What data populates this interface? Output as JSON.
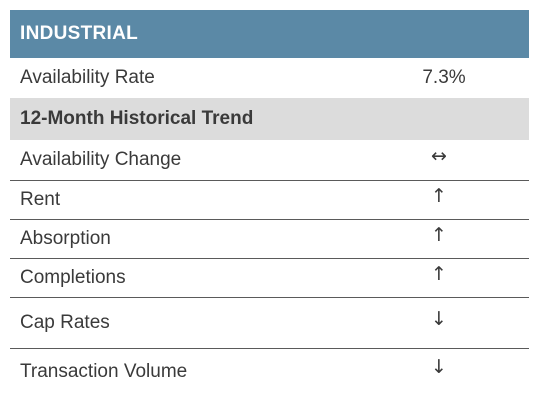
{
  "header": {
    "title": "INDUSTRIAL"
  },
  "availability": {
    "label": "Availability Rate",
    "value": "7.3%"
  },
  "trend": {
    "title": "12-Month Historical Trend",
    "rows": [
      {
        "label": "Availability Change",
        "icon": "left-right-arrow-icon",
        "glyph": "↔"
      },
      {
        "label": "Rent",
        "icon": "up-arrow-icon",
        "glyph": "↑"
      },
      {
        "label": "Absorption",
        "icon": "up-arrow-icon",
        "glyph": "↑"
      },
      {
        "label": "Completions",
        "icon": "up-arrow-icon",
        "glyph": "↑"
      },
      {
        "label": "Cap Rates",
        "icon": "down-arrow-icon",
        "glyph": "↓"
      },
      {
        "label": "Transaction Volume",
        "icon": "down-arrow-icon",
        "glyph": "↓"
      }
    ]
  },
  "colors": {
    "header_bg": "#5b89a6",
    "subheader_bg": "#dcdcdc",
    "text": "#3a3a3a"
  }
}
